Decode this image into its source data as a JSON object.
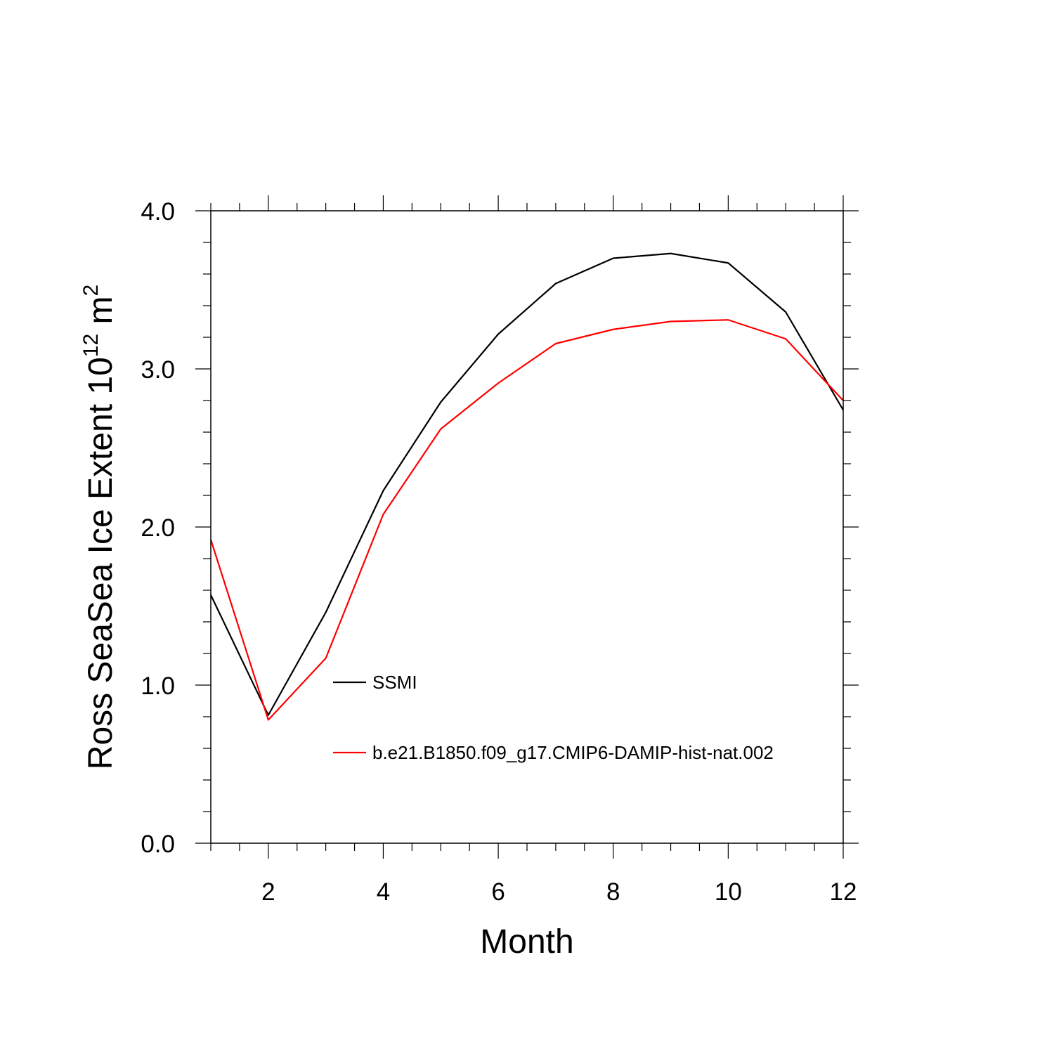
{
  "chart_data": {
    "type": "line",
    "xlabel": "Month",
    "ylabel": {
      "prefix": "Ross SeaSea Ice Extent 10",
      "exponent": "12",
      "unit": " m",
      "unit_exponent": "2"
    },
    "xlim": [
      1,
      12
    ],
    "ylim": [
      0.0,
      4.0
    ],
    "x_ticks": [
      2,
      4,
      6,
      8,
      10,
      12
    ],
    "y_ticks": [
      "0.0",
      "1.0",
      "2.0",
      "3.0",
      "4.0"
    ],
    "x": [
      1,
      2,
      3,
      4,
      5,
      6,
      7,
      8,
      9,
      10,
      11,
      12
    ],
    "series": [
      {
        "name": "SSMI",
        "color": "#000000",
        "values": [
          1.57,
          0.81,
          1.46,
          2.23,
          2.79,
          3.22,
          3.54,
          3.7,
          3.73,
          3.67,
          3.36,
          2.74
        ]
      },
      {
        "name": "b.e21.B1850.f09_g17.CMIP6-DAMIP-hist-nat.002",
        "color": "#ff0000",
        "values": [
          1.92,
          0.78,
          1.17,
          2.08,
          2.62,
          2.91,
          3.16,
          3.25,
          3.3,
          3.31,
          3.19,
          2.8
        ]
      }
    ],
    "grid": false,
    "legend_position": "inside-lower-middle"
  }
}
